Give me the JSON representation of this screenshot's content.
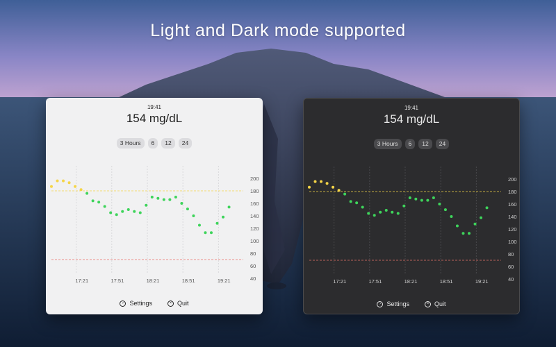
{
  "headline": "Light and Dark mode supported",
  "panels": [
    {
      "theme": "light",
      "time": "19:41",
      "reading": "154 mg/dL",
      "ranges": [
        "3 Hours",
        "6",
        "12",
        "24"
      ],
      "settings_label": "Settings",
      "quit_label": "Quit"
    },
    {
      "theme": "dark",
      "time": "19:41",
      "reading": "154 mg/dL",
      "ranges": [
        "3 Hours",
        "6",
        "12",
        "24"
      ],
      "settings_label": "Settings",
      "quit_label": "Quit"
    }
  ],
  "icons": {
    "settings": "gear-circle-icon",
    "quit": "x-circle-icon"
  },
  "colors": {
    "high_threshold": "#f5d547",
    "low_threshold": "#e8706a",
    "in_range_point": "#3ed45b",
    "high_point": "#f5d547"
  },
  "chart_data": {
    "type": "scatter",
    "y_ticks": [
      40,
      60,
      80,
      100,
      120,
      140,
      160,
      180,
      200
    ],
    "ylim": [
      40,
      220
    ],
    "x_ticks": [
      "17:21",
      "17:51",
      "18:21",
      "18:51",
      "19:21"
    ],
    "x_tick_minutes": [
      1041,
      1071,
      1101,
      1131,
      1161
    ],
    "xlim_minutes": [
      1020,
      1182
    ],
    "high_threshold": 180,
    "low_threshold": 70,
    "points": [
      {
        "t": 1020,
        "v": 187
      },
      {
        "t": 1025,
        "v": 196
      },
      {
        "t": 1030,
        "v": 196
      },
      {
        "t": 1035,
        "v": 193
      },
      {
        "t": 1040,
        "v": 187
      },
      {
        "t": 1045,
        "v": 182
      },
      {
        "t": 1050,
        "v": 176
      },
      {
        "t": 1055,
        "v": 164
      },
      {
        "t": 1060,
        "v": 162
      },
      {
        "t": 1065,
        "v": 155
      },
      {
        "t": 1070,
        "v": 145
      },
      {
        "t": 1075,
        "v": 142
      },
      {
        "t": 1080,
        "v": 147
      },
      {
        "t": 1085,
        "v": 150
      },
      {
        "t": 1090,
        "v": 147
      },
      {
        "t": 1095,
        "v": 145
      },
      {
        "t": 1100,
        "v": 157
      },
      {
        "t": 1105,
        "v": 170
      },
      {
        "t": 1110,
        "v": 168
      },
      {
        "t": 1115,
        "v": 166
      },
      {
        "t": 1120,
        "v": 166
      },
      {
        "t": 1125,
        "v": 170
      },
      {
        "t": 1130,
        "v": 160
      },
      {
        "t": 1135,
        "v": 151
      },
      {
        "t": 1140,
        "v": 140
      },
      {
        "t": 1145,
        "v": 125
      },
      {
        "t": 1150,
        "v": 113
      },
      {
        "t": 1155,
        "v": 113
      },
      {
        "t": 1160,
        "v": 128
      },
      {
        "t": 1165,
        "v": 138
      },
      {
        "t": 1170,
        "v": 154
      }
    ]
  }
}
